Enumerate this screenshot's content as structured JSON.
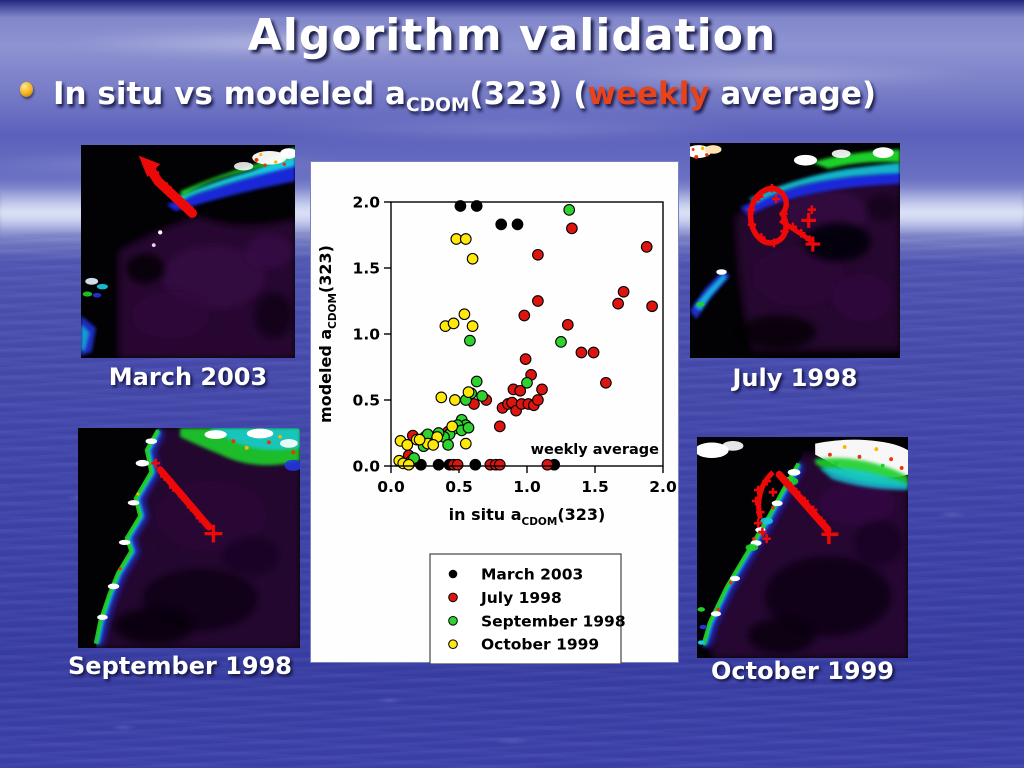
{
  "slide": {
    "title": "Algorithm validation",
    "bullet": {
      "prefix": "In situ vs modeled a",
      "sub": "CDOM",
      "mid": "(323) (",
      "highlight": "weekly",
      "suffix": " average)"
    }
  },
  "figures": [
    {
      "caption": "March 2003"
    },
    {
      "caption": "July 1998"
    },
    {
      "caption": "September 1998"
    },
    {
      "caption": "October 1999"
    }
  ],
  "chart_data": {
    "type": "scatter",
    "title": "",
    "xlabel": {
      "prefix": "in situ a",
      "sub": "CDOM",
      "suffix": "(323)"
    },
    "ylabel": {
      "prefix": "modeled a",
      "sub": "CDOM",
      "suffix": "(323)"
    },
    "xlim": [
      0.0,
      2.0
    ],
    "ylim": [
      0.0,
      2.0
    ],
    "xticks": [
      0.0,
      0.5,
      1.0,
      1.5,
      2.0
    ],
    "yticks": [
      0.0,
      0.5,
      1.0,
      1.5,
      2.0
    ],
    "grid": false,
    "annotation": "weekly average",
    "legend_position": "below-plot",
    "series": [
      {
        "name": "March 2003",
        "color": "#000000",
        "points": [
          [
            0.51,
            1.97
          ],
          [
            0.63,
            1.97
          ],
          [
            0.81,
            1.83
          ],
          [
            0.93,
            1.83
          ],
          [
            0.22,
            0.01
          ],
          [
            0.35,
            0.01
          ],
          [
            0.43,
            0.01
          ],
          [
            0.62,
            0.01
          ],
          [
            1.2,
            0.01
          ]
        ]
      },
      {
        "name": "July 1998",
        "color": "#dd1510",
        "points": [
          [
            1.33,
            1.8
          ],
          [
            1.88,
            1.66
          ],
          [
            1.08,
            1.6
          ],
          [
            1.71,
            1.32
          ],
          [
            1.67,
            1.23
          ],
          [
            1.92,
            1.21
          ],
          [
            1.08,
            1.25
          ],
          [
            0.98,
            1.14
          ],
          [
            1.3,
            1.07
          ],
          [
            1.4,
            0.86
          ],
          [
            1.49,
            0.86
          ],
          [
            0.99,
            0.81
          ],
          [
            1.03,
            0.69
          ],
          [
            1.58,
            0.63
          ],
          [
            0.9,
            0.58
          ],
          [
            0.95,
            0.57
          ],
          [
            1.11,
            0.58
          ],
          [
            0.7,
            0.5
          ],
          [
            0.61,
            0.47
          ],
          [
            0.82,
            0.44
          ],
          [
            0.86,
            0.47
          ],
          [
            0.89,
            0.48
          ],
          [
            0.92,
            0.42
          ],
          [
            0.96,
            0.47
          ],
          [
            1.01,
            0.47
          ],
          [
            1.05,
            0.46
          ],
          [
            1.08,
            0.5
          ],
          [
            0.8,
            0.3
          ],
          [
            0.42,
            0.26
          ],
          [
            0.25,
            0.22
          ],
          [
            0.16,
            0.23
          ],
          [
            0.13,
            0.08
          ],
          [
            0.15,
            0.04
          ],
          [
            0.46,
            0.01
          ],
          [
            0.49,
            0.01
          ],
          [
            0.73,
            0.01
          ],
          [
            0.77,
            0.01
          ],
          [
            0.8,
            0.01
          ],
          [
            1.15,
            0.01
          ]
        ]
      },
      {
        "name": "September 1998",
        "color": "#2ed32e",
        "points": [
          [
            1.31,
            1.94
          ],
          [
            0.58,
            0.95
          ],
          [
            1.25,
            0.94
          ],
          [
            1.0,
            0.63
          ],
          [
            0.63,
            0.64
          ],
          [
            0.59,
            0.55
          ],
          [
            0.67,
            0.53
          ],
          [
            0.55,
            0.5
          ],
          [
            0.52,
            0.35
          ],
          [
            0.55,
            0.31
          ],
          [
            0.49,
            0.31
          ],
          [
            0.46,
            0.28
          ],
          [
            0.52,
            0.27
          ],
          [
            0.57,
            0.29
          ],
          [
            0.43,
            0.24
          ],
          [
            0.39,
            0.22
          ],
          [
            0.35,
            0.25
          ],
          [
            0.31,
            0.21
          ],
          [
            0.27,
            0.24
          ],
          [
            0.24,
            0.15
          ],
          [
            0.42,
            0.16
          ],
          [
            0.17,
            0.06
          ]
        ]
      },
      {
        "name": "October 1999",
        "color": "#ffe80a",
        "points": [
          [
            0.48,
            1.72
          ],
          [
            0.55,
            1.72
          ],
          [
            0.6,
            1.57
          ],
          [
            0.54,
            1.15
          ],
          [
            0.4,
            1.06
          ],
          [
            0.46,
            1.08
          ],
          [
            0.6,
            1.06
          ],
          [
            0.37,
            0.52
          ],
          [
            0.47,
            0.5
          ],
          [
            0.57,
            0.56
          ],
          [
            0.45,
            0.3
          ],
          [
            0.34,
            0.22
          ],
          [
            0.27,
            0.17
          ],
          [
            0.07,
            0.19
          ],
          [
            0.12,
            0.16
          ],
          [
            0.19,
            0.2
          ],
          [
            0.31,
            0.16
          ],
          [
            0.55,
            0.17
          ],
          [
            0.21,
            0.2
          ],
          [
            0.06,
            0.04
          ],
          [
            0.09,
            0.02
          ],
          [
            0.13,
            0.01
          ]
        ]
      }
    ]
  }
}
